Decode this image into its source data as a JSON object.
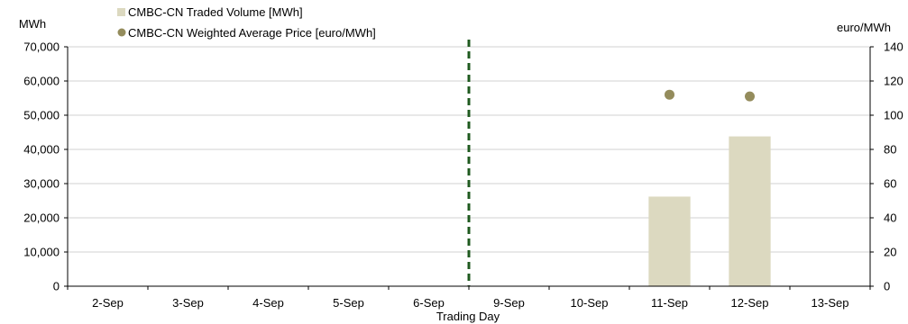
{
  "chart_data": {
    "type": "bar",
    "xlabel": "Trading Day",
    "y_left_unit": "MWh",
    "y_right_unit": "euro/MWh",
    "categories": [
      "2-Sep",
      "3-Sep",
      "4-Sep",
      "5-Sep",
      "6-Sep",
      "9-Sep",
      "10-Sep",
      "11-Sep",
      "12-Sep",
      "13-Sep"
    ],
    "series": [
      {
        "name": "CMBC-CN Traded Volume [MWh]",
        "type": "bar",
        "axis": "left",
        "color": "#dcd9c0",
        "values": [
          null,
          null,
          null,
          null,
          null,
          null,
          null,
          26200,
          43800,
          null
        ]
      },
      {
        "name": "CMBC-CN Weighted Average Price [euro/MWh]",
        "type": "scatter",
        "axis": "right",
        "color": "#948c5c",
        "values": [
          null,
          null,
          null,
          null,
          null,
          null,
          null,
          112,
          111,
          null
        ]
      }
    ],
    "ylim_left": [
      0,
      70000
    ],
    "yticks_left": [
      "0",
      "10,000",
      "20,000",
      "30,000",
      "40,000",
      "50,000",
      "60,000",
      "70,000"
    ],
    "ylim_right": [
      0,
      140
    ],
    "yticks_right": [
      "0",
      "20",
      "40",
      "60",
      "80",
      "100",
      "120",
      "140"
    ],
    "separator_after_category": "6-Sep",
    "separator_color": "#1f5a1f",
    "gridlines": true,
    "legend_position": "top-left"
  }
}
